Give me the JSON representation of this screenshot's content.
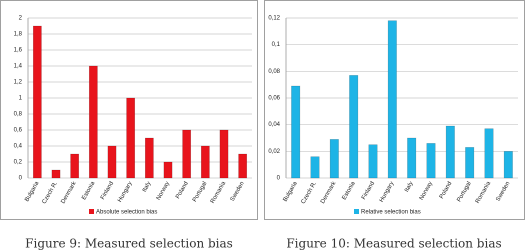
{
  "chart_data": [
    {
      "type": "bar",
      "caption": "Figure 9: Measured selection bias",
      "categories": [
        "Bulgaria",
        "Czech R.",
        "Denmark",
        "Estonia",
        "Finland",
        "Hungary",
        "Italy",
        "Norway",
        "Poland",
        "Portugal",
        "Romania",
        "Sweden"
      ],
      "series": [
        {
          "name": "Absolute selection bias",
          "color": "#e8141c",
          "values": [
            1.9,
            0.1,
            0.3,
            1.4,
            0.4,
            1.0,
            0.5,
            0.2,
            0.6,
            0.4,
            0.6,
            0.3
          ]
        }
      ],
      "ylim": [
        0,
        2
      ],
      "yticks": [
        0,
        {
          "value": 0.2,
          "label": "0,2"
        },
        {
          "value": 0.4,
          "label": "0,4"
        },
        {
          "value": 0.6,
          "label": "0,6"
        },
        {
          "value": 0.8,
          "label": "0,8"
        },
        1,
        {
          "value": 1.2,
          "label": "1,2"
        },
        {
          "value": 1.4,
          "label": "1,4"
        },
        {
          "value": 1.6,
          "label": "1,6"
        },
        {
          "value": 1.8,
          "label": "1,8"
        },
        2
      ],
      "grid": true
    },
    {
      "type": "bar",
      "caption": "Figure 10: Measured selection bias",
      "categories": [
        "Bulgaria",
        "Czech R.",
        "Denmark",
        "Estonia",
        "Finland",
        "Hungary",
        "Italy",
        "Norway",
        "Poland",
        "Portugal",
        "Romania",
        "Sweden"
      ],
      "series": [
        {
          "name": "Relative selection bias",
          "color": "#1eb4e6",
          "values": [
            0.069,
            0.016,
            0.029,
            0.077,
            0.025,
            0.118,
            0.03,
            0.026,
            0.039,
            0.023,
            0.037,
            0.02
          ]
        }
      ],
      "ylim": [
        0,
        0.12
      ],
      "yticks": [
        0,
        {
          "value": 0.02,
          "label": "0,02"
        },
        {
          "value": 0.04,
          "label": "0,04"
        },
        {
          "value": 0.06,
          "label": "0,06"
        },
        {
          "value": 0.08,
          "label": "0,08"
        },
        {
          "value": 0.1,
          "label": "0,1"
        },
        {
          "value": 0.12,
          "label": "0,12"
        }
      ],
      "grid": true
    }
  ]
}
